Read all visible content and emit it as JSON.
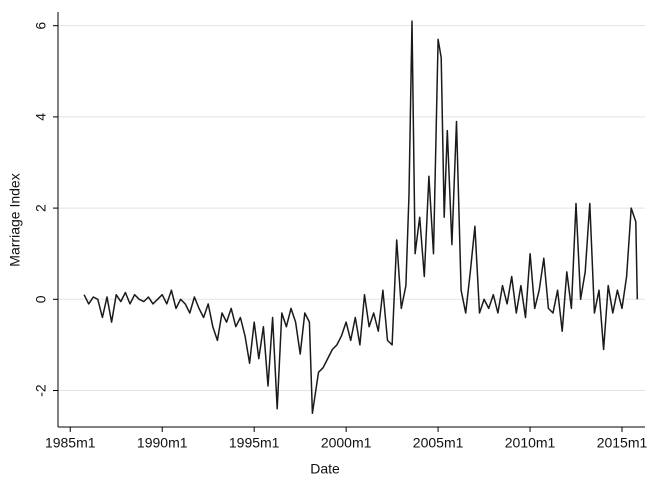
{
  "chart_data": {
    "type": "line",
    "x_label": "Date",
    "y_label": "Marriage Index",
    "x": [
      "1985m10",
      "1986m1",
      "1986m4",
      "1986m7",
      "1986m10",
      "1987m1",
      "1987m4",
      "1987m7",
      "1987m10",
      "1988m1",
      "1988m4",
      "1988m7",
      "1988m10",
      "1989m1",
      "1989m4",
      "1989m7",
      "1989m10",
      "1990m1",
      "1990m4",
      "1990m7",
      "1990m10",
      "1991m1",
      "1991m4",
      "1991m7",
      "1991m10",
      "1992m1",
      "1992m4",
      "1992m7",
      "1992m10",
      "1993m1",
      "1993m4",
      "1993m7",
      "1993m10",
      "1994m1",
      "1994m4",
      "1994m7",
      "1994m10",
      "1995m1",
      "1995m4",
      "1995m7",
      "1995m10",
      "1996m1",
      "1996m4",
      "1996m7",
      "1996m10",
      "1997m1",
      "1997m4",
      "1997m7",
      "1997m10",
      "1998m1",
      "1998m3",
      "1998m7",
      "1998m10",
      "1999m1",
      "1999m4",
      "1999m7",
      "1999m10",
      "2000m1",
      "2000m4",
      "2000m7",
      "2000m10",
      "2001m1",
      "2001m4",
      "2001m7",
      "2001m10",
      "2002m1",
      "2002m4",
      "2002m7",
      "2002m10",
      "2003m1",
      "2003m4",
      "2003m6",
      "2003m8",
      "2003m10",
      "2004m1",
      "2004m4",
      "2004m7",
      "2004m10",
      "2005m1",
      "2005m3",
      "2005m5",
      "2005m7",
      "2005m10",
      "2006m1",
      "2006m4",
      "2006m7",
      "2006m10",
      "2007m1",
      "2007m4",
      "2007m7",
      "2007m10",
      "2008m1",
      "2008m4",
      "2008m7",
      "2008m10",
      "2009m1",
      "2009m4",
      "2009m7",
      "2009m10",
      "2010m1",
      "2010m4",
      "2010m7",
      "2010m10",
      "2011m1",
      "2011m4",
      "2011m7",
      "2011m10",
      "2012m1",
      "2012m4",
      "2012m7",
      "2012m10",
      "2013m1",
      "2013m4",
      "2013m7",
      "2013m10",
      "2014m1",
      "2014m4",
      "2014m7",
      "2014m10",
      "2015m1",
      "2015m4",
      "2015m7",
      "2015m10",
      "2015m11"
    ],
    "series": [
      {
        "color": "#1a1a1a",
        "values": [
          0.1,
          -0.1,
          0.05,
          0,
          -0.4,
          0.05,
          -0.5,
          0.1,
          -0.05,
          0.15,
          -0.1,
          0.1,
          0,
          -0.05,
          0.05,
          -0.1,
          0,
          0.1,
          -0.1,
          0.2,
          -0.2,
          0,
          -0.1,
          -0.3,
          0.05,
          -0.2,
          -0.4,
          -0.1,
          -0.6,
          -0.9,
          -0.3,
          -0.5,
          -0.2,
          -0.6,
          -0.4,
          -0.8,
          -1.4,
          -0.5,
          -1.3,
          -0.6,
          -1.9,
          -0.4,
          -2.4,
          -0.3,
          -0.6,
          -0.2,
          -0.5,
          -1.2,
          -0.3,
          -0.5,
          -2.5,
          -1.6,
          -1.5,
          -1.3,
          -1.1,
          -1.0,
          -0.8,
          -0.5,
          -0.9,
          -0.4,
          -1.0,
          0.1,
          -0.6,
          -0.3,
          -0.7,
          0.2,
          -0.9,
          -1.0,
          1.3,
          -0.2,
          0.3,
          2.3,
          6.1,
          1.0,
          1.8,
          0.5,
          2.7,
          1.0,
          5.7,
          5.3,
          1.8,
          3.7,
          1.2,
          3.9,
          0.2,
          -0.3,
          0.6,
          1.6,
          -0.3,
          0,
          -0.2,
          0.1,
          -0.3,
          0.3,
          -0.1,
          0.5,
          -0.3,
          0.3,
          -0.4,
          1.0,
          -0.2,
          0.2,
          0.9,
          -0.2,
          -0.3,
          0.2,
          -0.7,
          0.6,
          -0.2,
          2.1,
          0,
          0.6,
          2.1,
          -0.3,
          0.2,
          -1.1,
          0.3,
          -0.3,
          0.2,
          -0.2,
          0.5,
          2.0,
          1.7,
          0
        ]
      }
    ],
    "xlim": [
      "1984m5",
      "2016m4"
    ],
    "xticks": [
      "1985m1",
      "1990m1",
      "1995m1",
      "2000m1",
      "2005m1",
      "2010m1",
      "2015m1"
    ],
    "ylim": [
      -2.8,
      6.3
    ],
    "yticks": [
      -2,
      0,
      2,
      4,
      6
    ],
    "grid": true
  }
}
